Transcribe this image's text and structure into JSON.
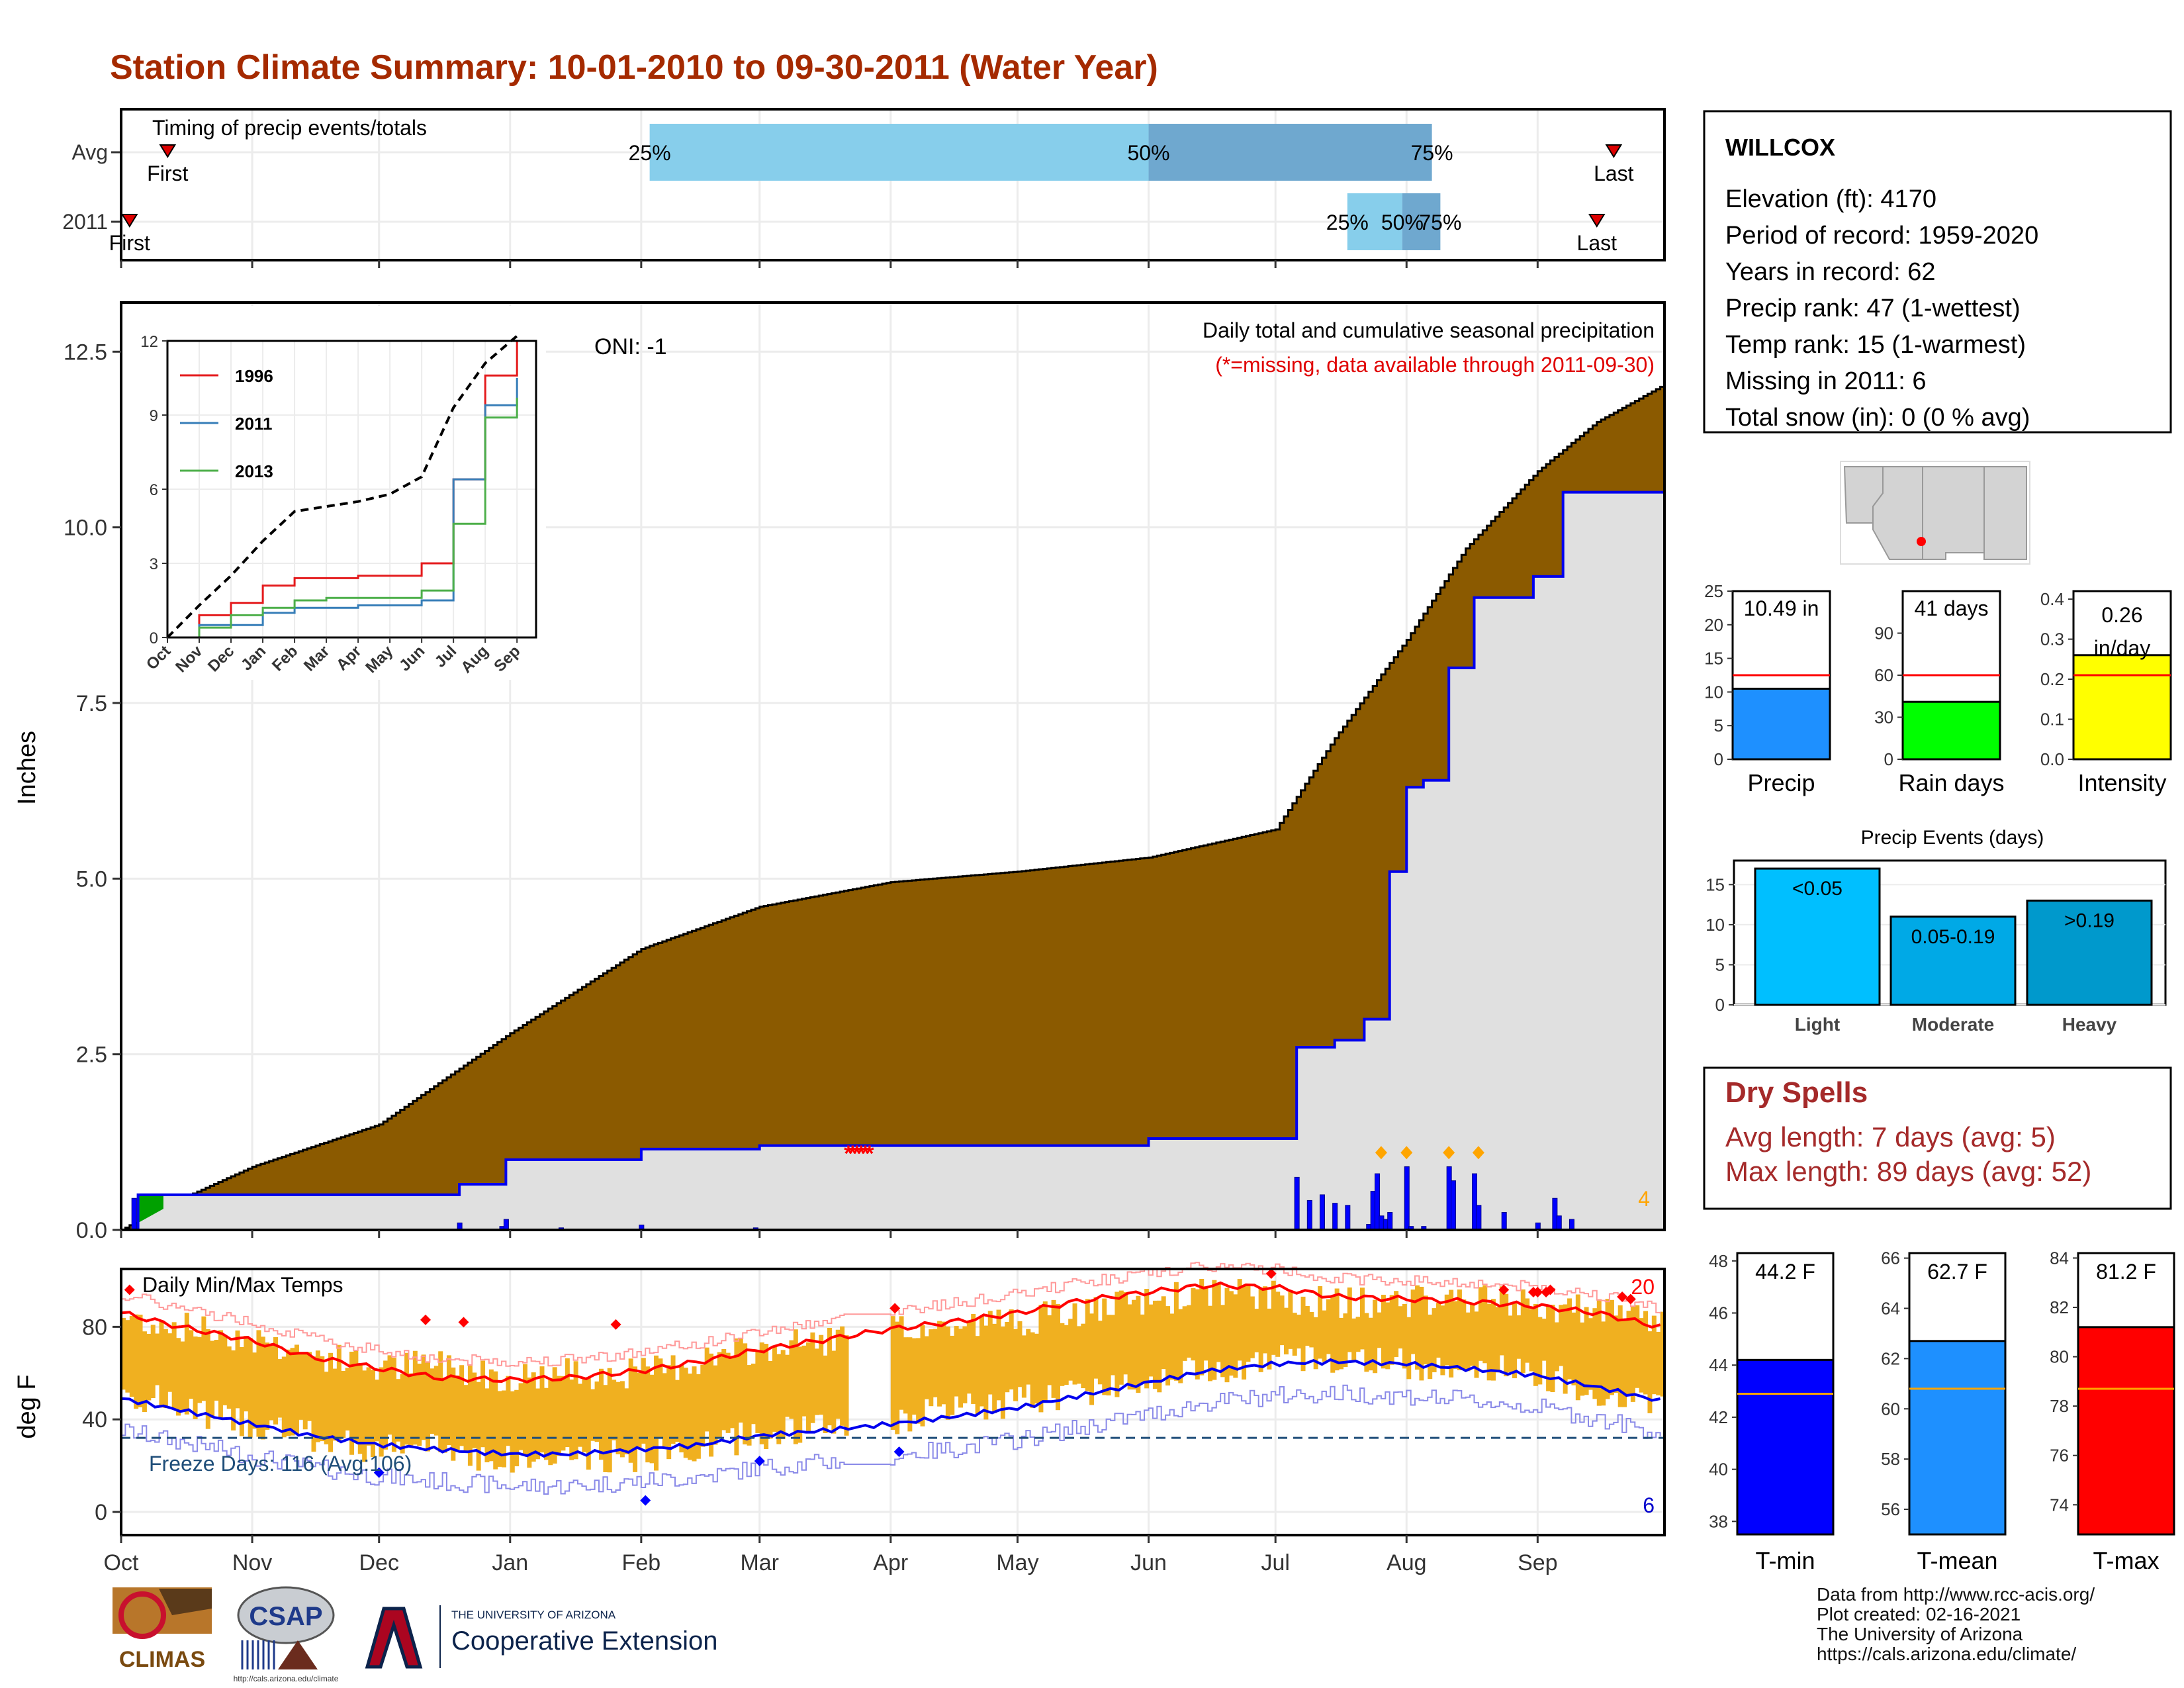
{
  "title": "Station Climate Summary: 10-01-2010 to 09-30-2011 (Water Year)",
  "timing": {
    "label": "Timing of precip events/totals",
    "rows": [
      {
        "name": "Avg",
        "first_date": "2010-10-12",
        "first_label": "First",
        "last_date": "2011-09-19",
        "last_label": "Last",
        "q25_date": "2011-02-03",
        "q50_date": "2011-06-01",
        "q75_date": "2011-08-07",
        "q25_label": "25%",
        "q50_label": "50%",
        "q75_label": "75%"
      },
      {
        "name": "2011",
        "first_date": "2010-10-03",
        "first_label": "First",
        "last_date": "2011-09-15",
        "last_label": "Last",
        "q25_date": "2011-07-18",
        "q50_date": "2011-07-31",
        "q75_date": "2011-08-09",
        "q25_label": "25%",
        "q50_label": "50%",
        "q75_label": "75%"
      }
    ],
    "colors": {
      "q25_50": "#87ceeb",
      "q50_75": "#6fa8cf",
      "marker": "#dd0000"
    }
  },
  "precip_panel": {
    "title": "Daily total and cumulative seasonal precipitation",
    "subtitle": "(*=missing, data available through 2011-09-30)",
    "oni": "ONI: -1",
    "ylabel": "Inches",
    "yticks": [
      "0.0",
      "2.5",
      "5.0",
      "7.5",
      "10.0",
      "12.5"
    ],
    "ylim": [
      0,
      13.2
    ],
    "count_label": "4",
    "colors": {
      "normal_fill": "#8b5a00",
      "obs_line": "#0000ee",
      "obs_fill": "#e0e0e0",
      "missing": "#ff0000",
      "extreme": "#ffa500",
      "early_fill": "#00a000"
    }
  },
  "inset": {
    "yticks": [
      "0",
      "3",
      "6",
      "9",
      "12"
    ],
    "xticks": [
      "Oct",
      "Nov",
      "Dec",
      "Jan",
      "Feb",
      "Mar",
      "Apr",
      "May",
      "Jun",
      "Jul",
      "Aug",
      "Sep"
    ],
    "legend": [
      {
        "name": "1996",
        "color": "#e41a1c"
      },
      {
        "name": "2011",
        "color": "#377eb8"
      },
      {
        "name": "2013",
        "color": "#4daf4a"
      }
    ]
  },
  "temp_panel": {
    "title": "Daily Min/Max Temps",
    "ylabel": "deg F",
    "yticks": [
      "0",
      "40",
      "80"
    ],
    "ylim": [
      -10,
      105
    ],
    "freeze_label": "Freeze Days: 116 (Avg:106)",
    "hot_count": "20",
    "cold_count": "6",
    "colors": {
      "bar": "#f0b020",
      "avg_max": "#ff0000",
      "avg_min": "#0000ee",
      "freeze": "#1f4e79"
    }
  },
  "xaxis_months": [
    "Oct",
    "Nov",
    "Dec",
    "Jan",
    "Feb",
    "Mar",
    "Apr",
    "May",
    "Jun",
    "Jul",
    "Aug",
    "Sep"
  ],
  "station": {
    "name": "WILLCOX",
    "lines": [
      "Elevation (ft): 4170",
      "Period of record: 1959-2020",
      "Years in record: 62",
      "Precip rank: 47 (1-wettest)",
      "Temp rank: 15 (1-warmest)",
      "Missing in 2011: 6",
      "Total snow (in): 0 (0 % avg)"
    ]
  },
  "mini_bars": [
    {
      "label": "Precip",
      "value_label": "10.49 in",
      "value": 10.49,
      "avg": 12.5,
      "ymax": 25,
      "yticks": [
        "0",
        "5",
        "10",
        "15",
        "20",
        "25"
      ],
      "color": "#1e90ff"
    },
    {
      "label": "Rain days",
      "value_label": "41 days",
      "value": 41,
      "avg": 60,
      "ymax": 120,
      "yticks": [
        "0",
        "30",
        "60",
        "90"
      ],
      "color": "#00ff00"
    },
    {
      "label": "Intensity",
      "value_label": "0.26 in/day",
      "value": 0.26,
      "avg": 0.21,
      "ymax": 0.42,
      "yticks": [
        "0.0",
        "0.1",
        "0.2",
        "0.3",
        "0.4"
      ],
      "color": "#ffff00"
    }
  ],
  "events": {
    "title": "Precip Events (days)",
    "yticks": [
      "0",
      "5",
      "10",
      "15"
    ],
    "ymax": 18,
    "bars": [
      {
        "name": "Light",
        "label": "<0.05",
        "value": 17,
        "color": "#00bfff"
      },
      {
        "name": "Moderate",
        "label": "0.05-0.19",
        "value": 11,
        "color": "#00a9e6"
      },
      {
        "name": "Heavy",
        "label": ">0.19",
        "value": 13,
        "color": "#0099cc"
      }
    ]
  },
  "dry_spells": {
    "title": "Dry Spells",
    "avg_line": "Avg length: 7 days (avg: 5)",
    "max_line": "Max length: 89 days (avg: 52)",
    "color": "#a52a2a"
  },
  "temp_bars": [
    {
      "label": "T-min",
      "value_label": "44.2 F",
      "value": 44.2,
      "avg": 42.9,
      "ymin": 37.5,
      "ymax": 48.3,
      "ticks": [
        38,
        40,
        42,
        44,
        46,
        48
      ],
      "color": "#0000ff"
    },
    {
      "label": "T-mean",
      "value_label": "62.7 F",
      "value": 62.7,
      "avg": 60.8,
      "ymin": 55,
      "ymax": 66.2,
      "ticks": [
        56,
        58,
        60,
        62,
        64,
        66
      ],
      "color": "#1e90ff"
    },
    {
      "label": "T-max",
      "value_label": "81.2 F",
      "value": 81.2,
      "avg": 78.7,
      "ymin": 72.8,
      "ymax": 84.2,
      "ticks": [
        74,
        76,
        78,
        80,
        82,
        84
      ],
      "color": "#ff0000"
    }
  ],
  "footer": {
    "lines": [
      "Data from http://www.rcc-acis.org/",
      "Plot created: 02-16-2021",
      "The University of Arizona",
      "https://cals.arizona.edu/climate/"
    ],
    "logo_climas": "CLIMAS",
    "logo_csap": "CSAP",
    "logo_csap_url": "http://cals.arizona.edu/climate",
    "ua_small": "THE UNIVERSITY OF ARIZONA",
    "ua_big": "Cooperative Extension"
  },
  "chart_data": [
    {
      "type": "area",
      "title": "Daily total and cumulative seasonal precipitation",
      "ylabel": "Inches",
      "ylim": [
        0,
        13.2
      ],
      "series": [
        {
          "x": [
            "2010-10-01",
            "2010-10-10",
            "2010-11-01",
            "2010-12-01",
            "2011-01-01",
            "2011-02-01",
            "2011-03-01",
            "2011-04-01",
            "2011-05-01",
            "2011-06-01",
            "2011-07-01",
            "2011-07-15",
            "2011-08-01",
            "2011-08-15",
            "2011-09-01",
            "2011-09-15",
            "2011-09-30"
          ],
          "values": [
            0.0,
            0.3,
            0.9,
            1.5,
            2.8,
            4.0,
            4.6,
            4.95,
            5.1,
            5.3,
            5.7,
            7.0,
            8.4,
            9.7,
            10.8,
            11.5,
            12.0
          ]
        },
        {
          "name": "2011",
          "x": [
            "2010-10-01",
            "2010-10-05",
            "2010-12-20",
            "2010-12-31",
            "2011-02-01",
            "2011-03-01",
            "2011-06-01",
            "2011-07-06",
            "2011-07-15",
            "2011-07-22",
            "2011-07-28",
            "2011-08-01",
            "2011-08-05",
            "2011-08-11",
            "2011-08-17",
            "2011-08-31",
            "2011-09-07",
            "2011-09-30"
          ],
          "values": [
            0.0,
            0.5,
            0.65,
            1.0,
            1.15,
            1.2,
            1.3,
            2.6,
            2.7,
            3.0,
            5.1,
            6.3,
            6.4,
            8.0,
            9.0,
            9.3,
            10.5,
            10.5
          ]
        }
      ],
      "daily": {
        "x": [
          "2010-10-04",
          "2010-12-20",
          "2010-12-30",
          "2010-12-31",
          "2011-01-13",
          "2011-02-01",
          "2011-02-28",
          "2011-07-06",
          "2011-07-09",
          "2011-07-12",
          "2011-07-15",
          "2011-07-18",
          "2011-07-23",
          "2011-07-24",
          "2011-07-25",
          "2011-07-26",
          "2011-07-27",
          "2011-07-28",
          "2011-08-01",
          "2011-08-02",
          "2011-08-05",
          "2011-08-11",
          "2011-08-12",
          "2011-08-17",
          "2011-08-18",
          "2011-08-24",
          "2011-09-01",
          "2011-09-05",
          "2011-09-06",
          "2011-09-09"
        ],
        "values": [
          0.45,
          0.1,
          0.05,
          0.15,
          0.03,
          0.07,
          0.03,
          0.75,
          0.42,
          0.5,
          0.38,
          0.35,
          0.08,
          0.55,
          0.8,
          0.2,
          0.15,
          0.25,
          0.9,
          0.05,
          0.05,
          0.9,
          0.7,
          0.8,
          0.35,
          0.25,
          0.1,
          0.45,
          0.2,
          0.15
        ]
      },
      "extreme_dates": [
        "2011-07-26",
        "2011-08-01",
        "2011-08-11",
        "2011-08-18"
      ],
      "missing": [
        "2011-03-22",
        "2011-03-23",
        "2011-03-24",
        "2011-03-25",
        "2011-03-26",
        "2011-03-27"
      ]
    },
    {
      "type": "line",
      "x": [
        "Oct",
        "Nov",
        "Dec",
        "Jan",
        "Feb",
        "Mar",
        "Apr",
        "May",
        "Jun",
        "Jul",
        "Aug",
        "Sep"
      ],
      "ylim": [
        0,
        12
      ],
      "series": [
        {
          "name": "",
          "values": [
            0.0,
            1.3,
            2.5,
            3.9,
            5.1,
            5.3,
            5.5,
            5.8,
            6.5,
            9.3,
            11.1,
            12.2
          ]
        },
        {
          "name": "1996",
          "values": [
            0.0,
            0.9,
            1.4,
            2.1,
            2.4,
            2.4,
            2.5,
            2.5,
            3.0,
            6.4,
            10.6,
            12.0
          ]
        },
        {
          "name": "2011",
          "values": [
            0.0,
            0.5,
            0.5,
            1.0,
            1.2,
            1.2,
            1.3,
            1.3,
            1.5,
            6.4,
            9.4,
            10.5
          ]
        },
        {
          "name": "2013",
          "values": [
            0.0,
            0.4,
            0.9,
            1.2,
            1.5,
            1.6,
            1.6,
            1.6,
            1.9,
            4.6,
            8.9,
            9.7
          ]
        }
      ]
    },
    {
      "type": "line",
      "title": "Daily Min/Max Temps",
      "ylabel": "deg F",
      "ylim": [
        -10,
        105
      ],
      "x": [
        "2010-10-01",
        "2010-10-15",
        "2010-11-01",
        "2010-11-15",
        "2010-12-01",
        "2010-12-15",
        "2011-01-01",
        "2011-01-15",
        "2011-02-01",
        "2011-02-15",
        "2011-03-01",
        "2011-03-15",
        "2011-04-01",
        "2011-04-15",
        "2011-05-01",
        "2011-05-15",
        "2011-06-01",
        "2011-06-15",
        "2011-07-01",
        "2011-07-15",
        "2011-08-01",
        "2011-08-15",
        "2011-09-01",
        "2011-09-15",
        "2011-09-30"
      ],
      "series": [
        {
          "name": "Tmax",
          "values": [
            84,
            80,
            75,
            68,
            62,
            64,
            58,
            60,
            60,
            66,
            70,
            74,
            78,
            80,
            83,
            86,
            91,
            95,
            93,
            90,
            91,
            92,
            89,
            86,
            82
          ]
        },
        {
          "name": "Tmin",
          "values": [
            52,
            45,
            38,
            32,
            27,
            28,
            22,
            24,
            24,
            28,
            34,
            36,
            40,
            44,
            48,
            52,
            58,
            62,
            66,
            66,
            64,
            63,
            60,
            52,
            46
          ]
        },
        {
          "name": "avg Tmax",
          "values": [
            86,
            80,
            74,
            67,
            62,
            58,
            57,
            58,
            61,
            65,
            70,
            74,
            79,
            82,
            86,
            91,
            95,
            98,
            97,
            93,
            92,
            91,
            89,
            86,
            80
          ]
        },
        {
          "name": "avg Tmin",
          "values": [
            49,
            44,
            38,
            33,
            29,
            27,
            25,
            25,
            27,
            29,
            33,
            35,
            38,
            41,
            45,
            50,
            56,
            61,
            64,
            65,
            64,
            62,
            59,
            54,
            48
          ]
        }
      ],
      "freeze_line": 32,
      "records_hot": 20,
      "records_cold": 6
    },
    {
      "type": "bar",
      "title": "Precip Events (days)",
      "categories": [
        "Light",
        "Moderate",
        "Heavy"
      ],
      "values": [
        17,
        11,
        13
      ]
    }
  ]
}
